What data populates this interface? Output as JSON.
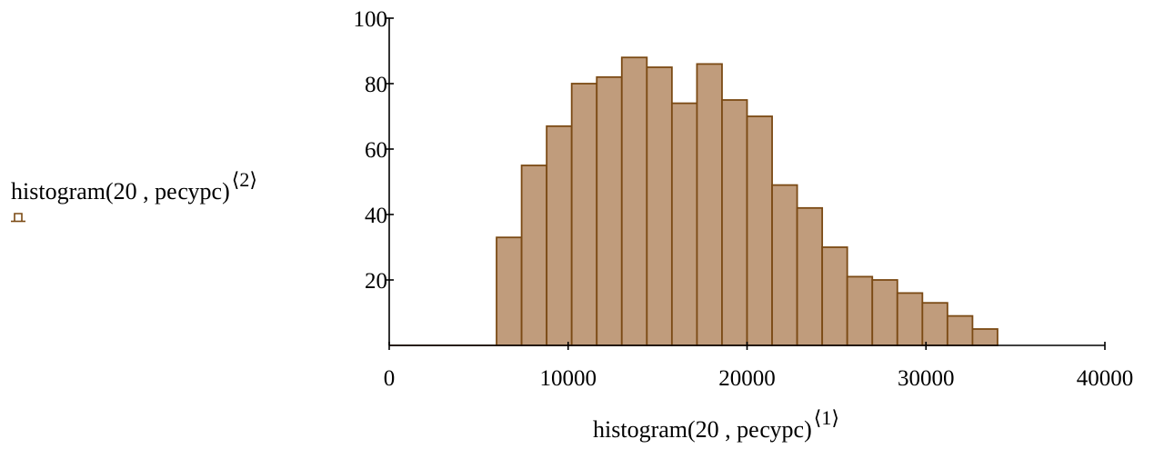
{
  "chart_data": {
    "type": "bar",
    "xlabel": "histogram(20 , ресурс)",
    "xlabel_superscript": "⟨1⟩",
    "ylabel": "histogram(20 , ресурс)",
    "ylabel_superscript": "⟨2⟩",
    "xlim": [
      0,
      40000
    ],
    "ylim": [
      0,
      100
    ],
    "xticks": [
      "0",
      "10000",
      "20000",
      "30000",
      "40000"
    ],
    "yticks": [
      "20",
      "40",
      "60",
      "80",
      "100"
    ],
    "bin_width": 1400,
    "x": [
      6700,
      8100,
      9500,
      10900,
      12300,
      13700,
      15100,
      16500,
      17900,
      19300,
      20700,
      22100,
      23500,
      24900,
      26300,
      27700,
      29100,
      30500,
      31900,
      33300
    ],
    "values": [
      33,
      55,
      67,
      80,
      82,
      88,
      85,
      74,
      86,
      75,
      70,
      49,
      42,
      30,
      21,
      20,
      16,
      13,
      9,
      5
    ],
    "grid": false,
    "colors": {
      "bar_fill": "#C09C7C",
      "bar_edge": "#7B4A14"
    }
  }
}
